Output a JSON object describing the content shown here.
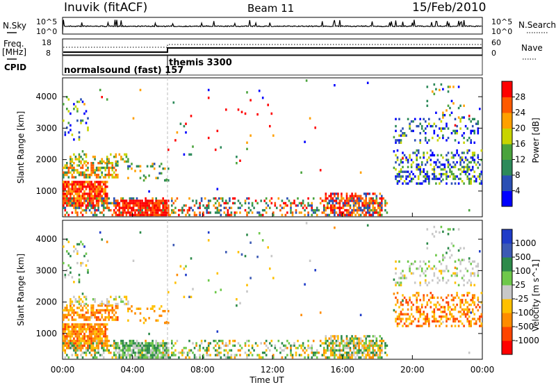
{
  "header": {
    "station": "Inuvik (fitACF)",
    "beam": "Beam 11",
    "date": "15/Feb/2010"
  },
  "side_labels": {
    "nsky": "N.Sky",
    "freq_line1": "Freq.",
    "freq_line2": "[MHz]",
    "cpid": "CPID",
    "nsearch": "N.Search",
    "nave": "Nave"
  },
  "colors": {
    "scale_power": [
      "#0000ff",
      "#2a4fb4",
      "#2d8a5a",
      "#4aa33c",
      "#c8d400",
      "#ffa000",
      "#ff5a00",
      "#ff0000"
    ],
    "scale_velocity": [
      "#ff0000",
      "#ff4500",
      "#ff8c00",
      "#ffc000",
      "#c8c8c8",
      "#6ec84a",
      "#2d8a4a",
      "#3c5ab4",
      "#1f3cc8"
    ]
  },
  "chart_data": [
    {
      "type": "line",
      "title": "",
      "panel": "noise",
      "ylabel_left": "N.Sky",
      "ylabel_right": "N.Search",
      "left_ticks": [
        "10^5",
        "10^0"
      ],
      "right_ticks": [
        "10^5",
        "10^0"
      ]
    },
    {
      "type": "line",
      "panel": "frequency",
      "ylabel_left": "Freq. [MHz]",
      "ylabel_right": "Nave",
      "left_ticks": [
        "18",
        "8"
      ],
      "right_ticks": [
        "60",
        "0"
      ]
    },
    {
      "type": "table",
      "panel": "cpid",
      "entries": [
        {
          "label": "normalsound (fast) 157",
          "start": "00:00",
          "end": "06:00"
        },
        {
          "label": "themis 3300",
          "start": "06:00",
          "end": "24:00"
        }
      ]
    },
    {
      "type": "heatmap",
      "panel": "power",
      "ylabel": "Slant Range [km]",
      "y_ticks": [
        "4000",
        "3000",
        "2000",
        "1000"
      ],
      "ylim": [
        180,
        4600
      ],
      "colorbar_label": "Power [dB]",
      "colorbar_ticks": [
        "28",
        "24",
        "20",
        "16",
        "12",
        "8",
        "4"
      ]
    },
    {
      "type": "heatmap",
      "panel": "velocity",
      "ylabel": "Slant Range [km]",
      "y_ticks": [
        "4000",
        "3000",
        "2000",
        "1000"
      ],
      "ylim": [
        180,
        4600
      ],
      "x_ticks": [
        "00:00",
        "04:00",
        "08:00",
        "12:00",
        "16:00",
        "20:00",
        "00:00"
      ],
      "xlabel": "Time UT",
      "colorbar_label": "Velocity [m s^-1]",
      "colorbar_ticks": [
        "1000",
        "500",
        "100",
        "25",
        "-25",
        "-100",
        "-500",
        "-1000"
      ]
    }
  ]
}
